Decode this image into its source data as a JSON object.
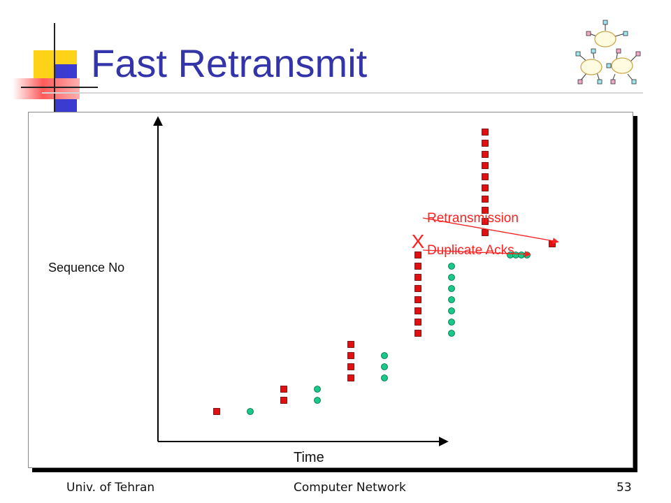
{
  "slide": {
    "title": "Fast Retransmit",
    "footer_left": "Univ. of Tehran",
    "footer_center": "Computer Network",
    "page_number": "53"
  },
  "chart_data": {
    "type": "scatter",
    "xlabel": "Time",
    "ylabel": "Sequence No",
    "packet_groups": [
      {
        "x": 1,
        "count": 1,
        "start": 1
      },
      {
        "x": 2,
        "count": 2,
        "start": 2
      },
      {
        "x": 3,
        "count": 4,
        "start": 4
      },
      {
        "x": 4,
        "count": 8,
        "start": 8
      },
      {
        "x": 5,
        "count": 10,
        "start": 17
      }
    ],
    "ack_groups": [
      {
        "x": 1.5,
        "count": 1,
        "start": 1
      },
      {
        "x": 2.5,
        "count": 2,
        "start": 2
      },
      {
        "x": 3.5,
        "count": 3,
        "start": 4
      },
      {
        "x": 4.5,
        "count": 7,
        "start": 8
      }
    ],
    "lost": {
      "x": 4,
      "seq": 16,
      "marker": "X"
    },
    "duplicate_acks": {
      "x": 5.5,
      "seq": 15,
      "count": 4
    },
    "retransmission": {
      "x": 6,
      "seq": 16
    },
    "annotations": [
      {
        "text": "Retransmission",
        "target": "retransmission"
      },
      {
        "text": "Duplicate Acks",
        "target": "duplicate_acks"
      }
    ],
    "colors": {
      "packet": "#e01010",
      "ack": "#19c98a",
      "annotation": "#ff2020",
      "axis": "#000000"
    }
  }
}
